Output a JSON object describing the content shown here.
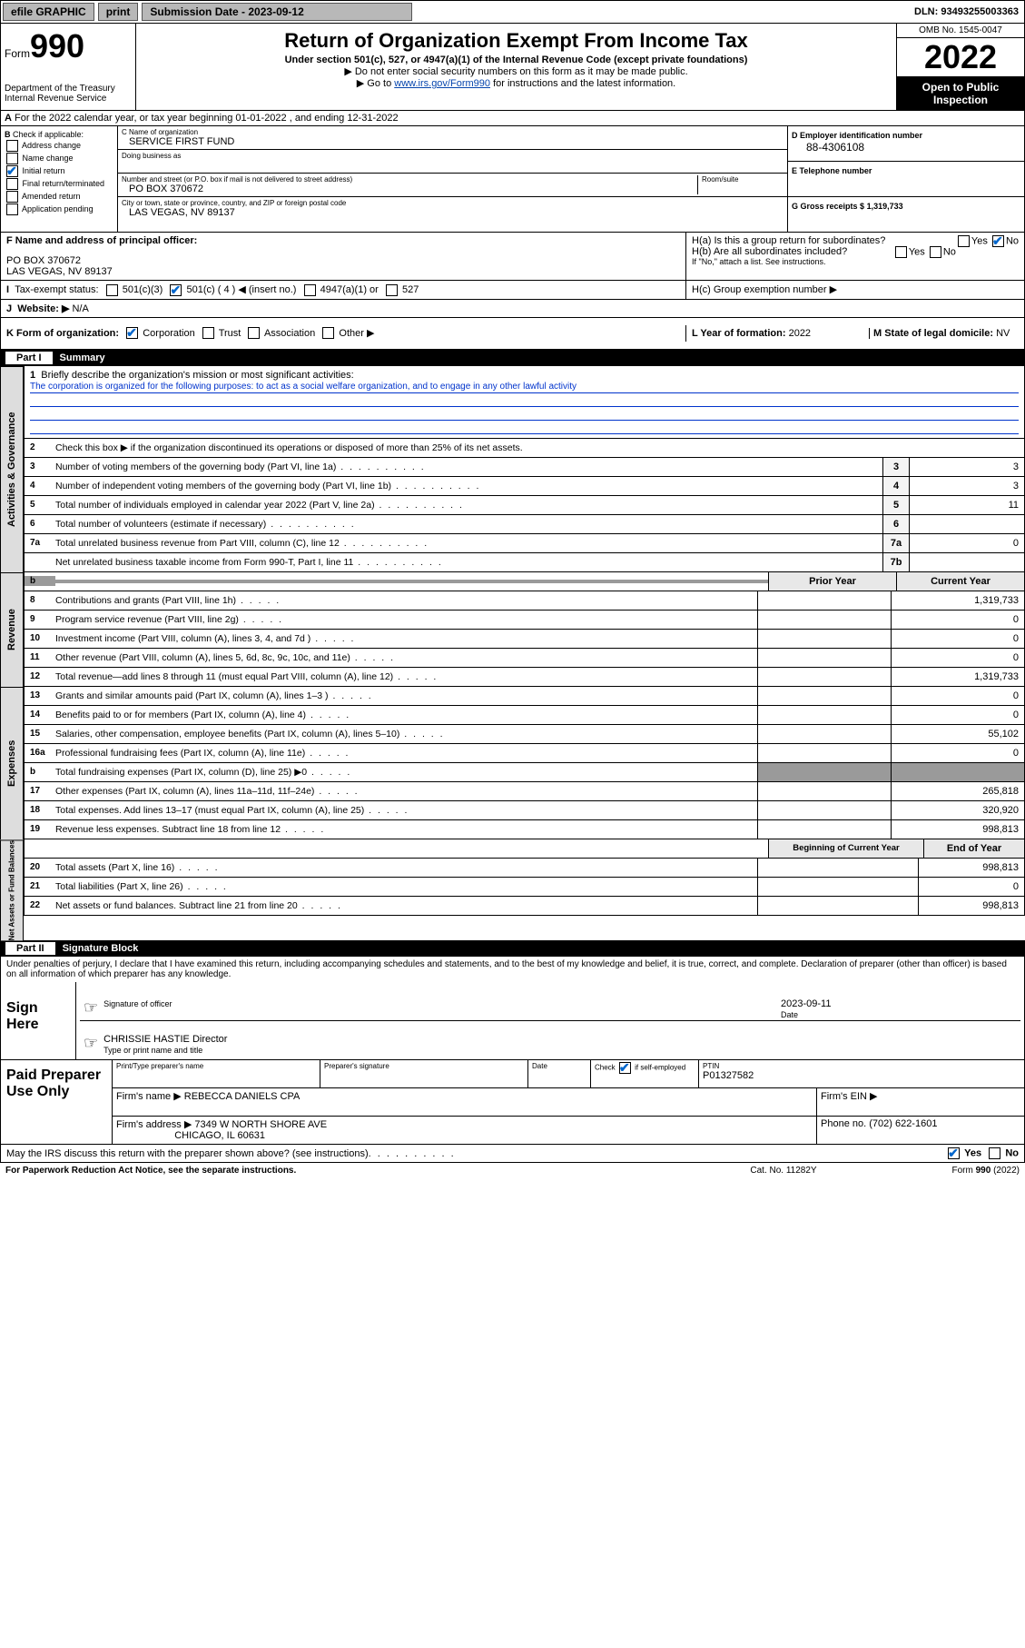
{
  "topbar": {
    "efile": "efile GRAPHIC",
    "print": "print",
    "submission_label": "Submission Date - 2023-09-12",
    "dln": "DLN: 93493255003363"
  },
  "header": {
    "form_word": "Form",
    "form_number": "990",
    "title": "Return of Organization Exempt From Income Tax",
    "subtitle": "Under section 501(c), 527, or 4947(a)(1) of the Internal Revenue Code (except private foundations)",
    "note1": "▶ Do not enter social security numbers on this form as it may be made public.",
    "note2_pre": "▶ Go to ",
    "note2_link": "www.irs.gov/Form990",
    "note2_post": " for instructions and the latest information.",
    "dept": "Department of the Treasury",
    "irs": "Internal Revenue Service",
    "omb": "OMB No. 1545-0047",
    "year": "2022",
    "inspection": "Open to Public Inspection"
  },
  "lineA": "For the 2022 calendar year, or tax year beginning 01-01-2022    , and ending 12-31-2022",
  "checkB": {
    "label": "Check if applicable:",
    "items": [
      "Address change",
      "Name change",
      "Initial return",
      "Final return/terminated",
      "Amended return",
      "Application pending"
    ],
    "checked_index": 2
  },
  "entity": {
    "name_lbl": "C Name of organization",
    "name": "SERVICE FIRST FUND",
    "dba_lbl": "Doing business as",
    "dba": "",
    "addr_lbl": "Number and street (or P.O. box if mail is not delivered to street address)",
    "room_lbl": "Room/suite",
    "addr": "PO BOX 370672",
    "city_lbl": "City or town, state or province, country, and ZIP or foreign postal code",
    "city": "LAS VEGAS, NV  89137",
    "ein_lbl": "D Employer identification number",
    "ein": "88-4306108",
    "phone_lbl": "E Telephone number",
    "phone": "",
    "gross_lbl": "G Gross receipts $",
    "gross": "1,319,733"
  },
  "lineF": {
    "lbl": "F  Name and address of principal officer:",
    "val1": "PO BOX 370672",
    "val2": "LAS VEGAS, NV  89137"
  },
  "lineH": {
    "ha": "H(a)  Is this a group return for subordinates?",
    "hb": "H(b)  Are all subordinates included?",
    "hb_note": "If \"No,\" attach a list. See instructions.",
    "hc": "H(c)  Group exemption number ▶",
    "yes": "Yes",
    "no": "No"
  },
  "lineI": {
    "lbl": "Tax-exempt status:",
    "o1": "501(c)(3)",
    "o2l": "501(c) ( 4 ) ◀ (insert no.)",
    "o3": "4947(a)(1) or",
    "o4": "527"
  },
  "lineJ": {
    "lbl": "Website: ▶",
    "val": "N/A"
  },
  "lineK": {
    "lbl": "K Form of organization:",
    "o1": "Corporation",
    "o2": "Trust",
    "o3": "Association",
    "o4": "Other ▶"
  },
  "lineL": {
    "lbl": "L Year of formation:",
    "val": "2022"
  },
  "lineM": {
    "lbl": "M State of legal domicile:",
    "val": "NV"
  },
  "part1": {
    "num": "Part I",
    "title": "Summary"
  },
  "mission": {
    "lbl": "Briefly describe the organization's mission or most significant activities:",
    "text": "The corporation is organized for the following purposes: to act as a social welfare organization, and to engage in any other lawful activity"
  },
  "line2": "Check this box ▶     if the organization discontinued its operations or disposed of more than 25% of its net assets.",
  "gov_rows": [
    {
      "n": "3",
      "d": "Number of voting members of the governing body (Part VI, line 1a)",
      "box": "3",
      "v": "3"
    },
    {
      "n": "4",
      "d": "Number of independent voting members of the governing body (Part VI, line 1b)",
      "box": "4",
      "v": "3"
    },
    {
      "n": "5",
      "d": "Total number of individuals employed in calendar year 2022 (Part V, line 2a)",
      "box": "5",
      "v": "11"
    },
    {
      "n": "6",
      "d": "Total number of volunteers (estimate if necessary)",
      "box": "6",
      "v": ""
    },
    {
      "n": "7a",
      "d": "Total unrelated business revenue from Part VIII, column (C), line 12",
      "box": "7a",
      "v": "0"
    },
    {
      "n": "",
      "d": "Net unrelated business taxable income from Form 990-T, Part I, line 11",
      "box": "7b",
      "v": ""
    }
  ],
  "col_headers": {
    "prior": "Prior Year",
    "current": "Current Year"
  },
  "rev_rows": [
    {
      "n": "8",
      "d": "Contributions and grants (Part VIII, line 1h)",
      "p": "",
      "c": "1,319,733"
    },
    {
      "n": "9",
      "d": "Program service revenue (Part VIII, line 2g)",
      "p": "",
      "c": "0"
    },
    {
      "n": "10",
      "d": "Investment income (Part VIII, column (A), lines 3, 4, and 7d )",
      "p": "",
      "c": "0"
    },
    {
      "n": "11",
      "d": "Other revenue (Part VIII, column (A), lines 5, 6d, 8c, 9c, 10c, and 11e)",
      "p": "",
      "c": "0"
    },
    {
      "n": "12",
      "d": "Total revenue—add lines 8 through 11 (must equal Part VIII, column (A), line 12)",
      "p": "",
      "c": "1,319,733"
    }
  ],
  "exp_rows": [
    {
      "n": "13",
      "d": "Grants and similar amounts paid (Part IX, column (A), lines 1–3 )",
      "p": "",
      "c": "0"
    },
    {
      "n": "14",
      "d": "Benefits paid to or for members (Part IX, column (A), line 4)",
      "p": "",
      "c": "0"
    },
    {
      "n": "15",
      "d": "Salaries, other compensation, employee benefits (Part IX, column (A), lines 5–10)",
      "p": "",
      "c": "55,102"
    },
    {
      "n": "16a",
      "d": "Professional fundraising fees (Part IX, column (A), line 11e)",
      "p": "",
      "c": "0"
    },
    {
      "n": "b",
      "d": "Total fundraising expenses (Part IX, column (D), line 25) ▶0",
      "p": "GREY",
      "c": "GREY"
    },
    {
      "n": "17",
      "d": "Other expenses (Part IX, column (A), lines 11a–11d, 11f–24e)",
      "p": "",
      "c": "265,818"
    },
    {
      "n": "18",
      "d": "Total expenses. Add lines 13–17 (must equal Part IX, column (A), line 25)",
      "p": "",
      "c": "320,920"
    },
    {
      "n": "19",
      "d": "Revenue less expenses. Subtract line 18 from line 12",
      "p": "",
      "c": "998,813"
    }
  ],
  "na_header": {
    "prior": "Beginning of Current Year",
    "current": "End of Year"
  },
  "na_rows": [
    {
      "n": "20",
      "d": "Total assets (Part X, line 16)",
      "p": "",
      "c": "998,813"
    },
    {
      "n": "21",
      "d": "Total liabilities (Part X, line 26)",
      "p": "",
      "c": "0"
    },
    {
      "n": "22",
      "d": "Net assets or fund balances. Subtract line 21 from line 20",
      "p": "",
      "c": "998,813"
    }
  ],
  "vert": {
    "gov": "Activities & Governance",
    "rev": "Revenue",
    "exp": "Expenses",
    "na": "Net Assets or Fund Balances"
  },
  "part2": {
    "num": "Part II",
    "title": "Signature Block"
  },
  "decl": "Under penalties of perjury, I declare that I have examined this return, including accompanying schedules and statements, and to the best of my knowledge and belief, it is true, correct, and complete. Declaration of preparer (other than officer) is based on all information of which preparer has any knowledge.",
  "sign": {
    "here": "Sign Here",
    "sig_lbl": "Signature of officer",
    "date_lbl": "Date",
    "date": "2023-09-11",
    "name": "CHRISSIE HASTIE  Director",
    "name_lbl": "Type or print name and title"
  },
  "prep": {
    "title": "Paid Preparer Use Only",
    "name_lbl": "Print/Type preparer's name",
    "sig_lbl": "Preparer's signature",
    "date_lbl": "Date",
    "check_lbl": "Check",
    "se_lbl": "if self-employed",
    "ptin_lbl": "PTIN",
    "ptin": "P01327582",
    "firm_name_lbl": "Firm's name    ▶",
    "firm_name": "REBECCA DANIELS CPA",
    "ein_lbl": "Firm's EIN ▶",
    "addr_lbl": "Firm's address ▶",
    "addr1": "7349 W NORTH SHORE AVE",
    "addr2": "CHICAGO, IL  60631",
    "phone_lbl": "Phone no.",
    "phone": "(702) 622-1601"
  },
  "discuss": "May the IRS discuss this return with the preparer shown above? (see instructions)",
  "footer": {
    "pra": "For Paperwork Reduction Act Notice, see the separate instructions.",
    "cat": "Cat. No. 11282Y",
    "form": "Form 990 (2022)"
  }
}
